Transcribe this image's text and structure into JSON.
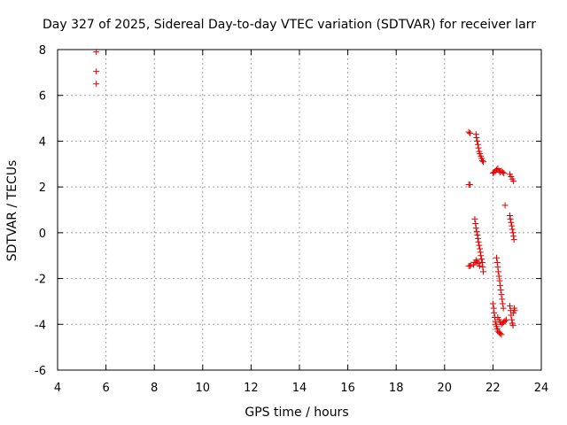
{
  "chart_data": {
    "type": "scatter",
    "title": "Day 327 of 2025, Sidereal Day-to-day VTEC variation (SDTVAR) for receiver larr",
    "xlabel": "GPS time / hours",
    "ylabel": "SDTVAR / TECUs",
    "xlim": [
      4,
      24
    ],
    "ylim": [
      -6,
      8
    ],
    "xticks": [
      4,
      6,
      8,
      10,
      12,
      14,
      16,
      18,
      20,
      22,
      24
    ],
    "yticks": [
      -6,
      -4,
      -2,
      0,
      2,
      4,
      6,
      8
    ],
    "grid": true,
    "marker": "+",
    "color": "#e00000",
    "series": [
      {
        "name": "SDTVAR",
        "points": [
          [
            5.6,
            7.9
          ],
          [
            5.6,
            7.05
          ],
          [
            5.6,
            6.5
          ],
          [
            21.0,
            4.4
          ],
          [
            21.05,
            4.35
          ],
          [
            21.0,
            2.1
          ],
          [
            21.05,
            2.1
          ],
          [
            21.3,
            4.3
          ],
          [
            21.32,
            4.15
          ],
          [
            21.35,
            4.0
          ],
          [
            21.38,
            3.85
          ],
          [
            21.4,
            3.7
          ],
          [
            21.43,
            3.55
          ],
          [
            21.46,
            3.45
          ],
          [
            21.5,
            3.35
          ],
          [
            21.53,
            3.25
          ],
          [
            21.56,
            3.15
          ],
          [
            21.6,
            3.1
          ],
          [
            21.0,
            -1.45
          ],
          [
            21.05,
            -1.45
          ],
          [
            21.1,
            -1.4
          ],
          [
            21.25,
            0.6
          ],
          [
            21.28,
            0.4
          ],
          [
            21.3,
            0.2
          ],
          [
            21.33,
            0.05
          ],
          [
            21.36,
            -0.1
          ],
          [
            21.38,
            -0.25
          ],
          [
            21.4,
            -0.4
          ],
          [
            21.43,
            -0.55
          ],
          [
            21.46,
            -0.7
          ],
          [
            21.48,
            -0.85
          ],
          [
            21.5,
            -1.0
          ],
          [
            21.53,
            -1.15
          ],
          [
            21.56,
            -1.3
          ],
          [
            21.58,
            -1.5
          ],
          [
            21.6,
            -1.7
          ],
          [
            21.2,
            -1.4
          ],
          [
            21.25,
            -1.3
          ],
          [
            21.3,
            -1.2
          ],
          [
            21.35,
            -1.25
          ],
          [
            21.4,
            -1.35
          ],
          [
            21.45,
            -1.45
          ],
          [
            22.0,
            2.6
          ],
          [
            22.05,
            2.65
          ],
          [
            22.1,
            2.7
          ],
          [
            22.15,
            2.75
          ],
          [
            22.2,
            2.8
          ],
          [
            22.25,
            2.7
          ],
          [
            22.3,
            2.65
          ],
          [
            22.35,
            2.7
          ],
          [
            22.4,
            2.65
          ],
          [
            22.45,
            2.6
          ],
          [
            22.5,
            1.2
          ],
          [
            22.7,
            2.55
          ],
          [
            22.75,
            2.45
          ],
          [
            22.8,
            2.35
          ],
          [
            22.85,
            2.25
          ],
          [
            22.7,
            0.75
          ],
          [
            22.72,
            0.6
          ],
          [
            22.75,
            0.45
          ],
          [
            22.78,
            0.3
          ],
          [
            22.8,
            0.15
          ],
          [
            22.83,
            0.0
          ],
          [
            22.85,
            -0.15
          ],
          [
            22.87,
            -0.3
          ],
          [
            22.0,
            -3.1
          ],
          [
            22.03,
            -3.3
          ],
          [
            22.05,
            -3.5
          ],
          [
            22.08,
            -3.7
          ],
          [
            22.1,
            -3.9
          ],
          [
            22.13,
            -4.0
          ],
          [
            22.15,
            -4.1
          ],
          [
            22.18,
            -4.2
          ],
          [
            22.2,
            -4.3
          ],
          [
            22.25,
            -4.35
          ],
          [
            22.3,
            -4.4
          ],
          [
            22.35,
            -4.45
          ],
          [
            22.15,
            -1.1
          ],
          [
            22.18,
            -1.3
          ],
          [
            22.2,
            -1.5
          ],
          [
            22.22,
            -1.7
          ],
          [
            22.25,
            -1.9
          ],
          [
            22.28,
            -2.1
          ],
          [
            22.3,
            -2.3
          ],
          [
            22.32,
            -2.5
          ],
          [
            22.35,
            -2.7
          ],
          [
            22.38,
            -2.9
          ],
          [
            22.4,
            -3.1
          ],
          [
            22.43,
            -3.3
          ],
          [
            22.2,
            -3.7
          ],
          [
            22.25,
            -3.8
          ],
          [
            22.3,
            -3.9
          ],
          [
            22.35,
            -4.0
          ],
          [
            22.4,
            -3.95
          ],
          [
            22.45,
            -3.9
          ],
          [
            22.5,
            -3.85
          ],
          [
            22.55,
            -3.8
          ],
          [
            22.7,
            -3.2
          ],
          [
            22.73,
            -3.4
          ],
          [
            22.75,
            -3.6
          ],
          [
            22.78,
            -3.8
          ],
          [
            22.8,
            -3.95
          ],
          [
            22.83,
            -4.05
          ],
          [
            22.85,
            -3.5
          ],
          [
            22.88,
            -3.3
          ],
          [
            22.9,
            -3.4
          ]
        ]
      }
    ]
  }
}
